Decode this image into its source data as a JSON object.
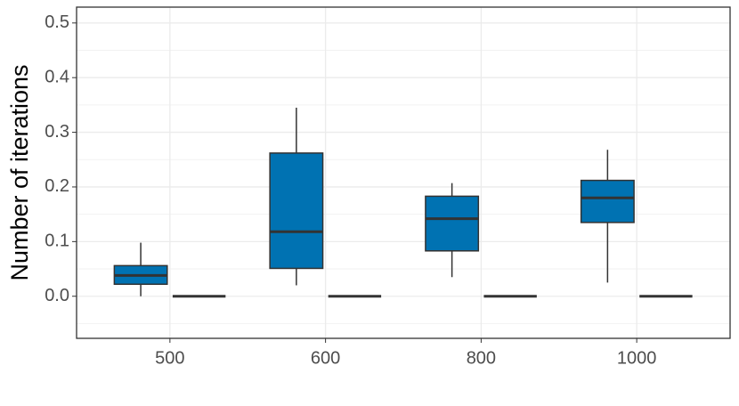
{
  "chart_data": {
    "type": "box",
    "y_label": "Number of iterations",
    "categories": [
      "500",
      "600",
      "800",
      "1000"
    ],
    "series": [
      {
        "color": "#0072b2",
        "boxes": [
          {
            "min": 0.0,
            "q1": 0.022,
            "median": 0.038,
            "q3": 0.056,
            "max": 0.098
          },
          {
            "min": 0.02,
            "q1": 0.051,
            "median": 0.118,
            "q3": 0.262,
            "max": 0.345
          },
          {
            "min": 0.035,
            "q1": 0.083,
            "median": 0.142,
            "q3": 0.183,
            "max": 0.207
          },
          {
            "min": 0.025,
            "q1": 0.135,
            "median": 0.18,
            "q3": 0.212,
            "max": 0.268
          }
        ]
      },
      {
        "color": "#0072b2",
        "boxes": [
          {
            "min": 0,
            "q1": 0,
            "median": 0,
            "q3": 0,
            "max": 0
          },
          {
            "min": 0,
            "q1": 0,
            "median": 0,
            "q3": 0,
            "max": 0
          },
          {
            "min": 0,
            "q1": 0,
            "median": 0,
            "q3": 0,
            "max": 0
          },
          {
            "min": 0,
            "q1": 0,
            "median": 0,
            "q3": 0,
            "max": 0
          }
        ]
      }
    ],
    "ylim": [
      -0.077,
      0.529
    ],
    "yticks": [
      {
        "value": 0,
        "label": "0.0"
      },
      0.1,
      0.2,
      0.3,
      0.4,
      0.5
    ],
    "minor_yticks": [
      -0.05,
      0.05,
      0.15,
      0.25,
      0.35,
      0.45
    ],
    "grid": true
  }
}
